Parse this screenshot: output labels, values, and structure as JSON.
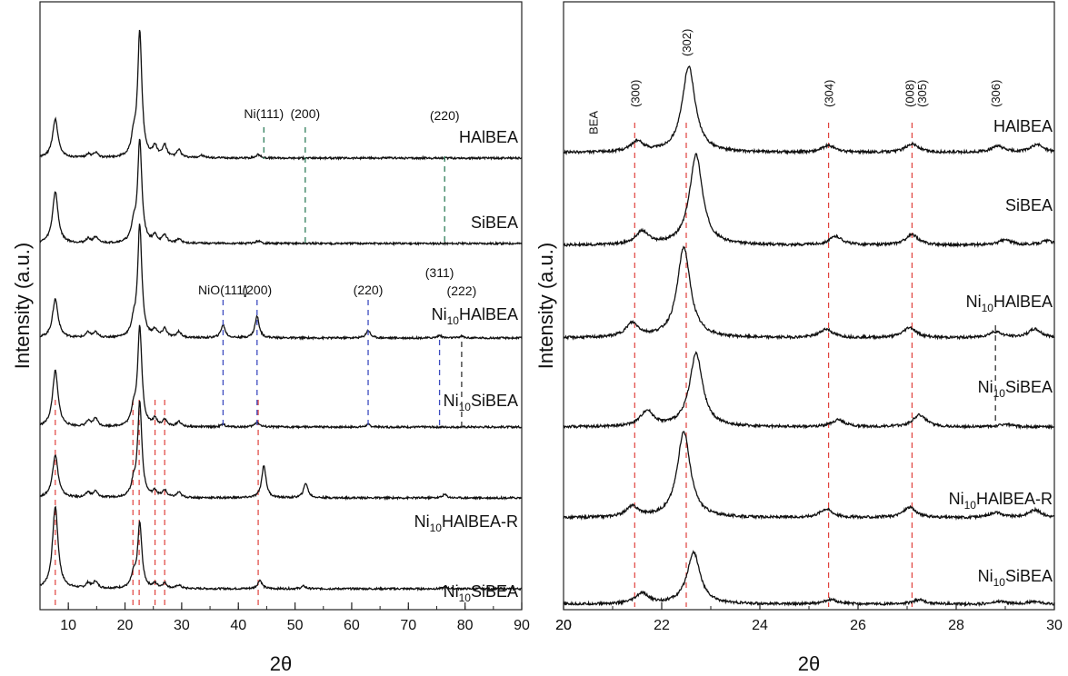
{
  "chart_data": [
    {
      "type": "line",
      "panel": "left",
      "xlabel": "2θ",
      "ylabel": "Intensity (a.u.)",
      "xlim": [
        5,
        90
      ],
      "xticks": [
        10,
        20,
        30,
        40,
        50,
        60,
        70,
        80,
        90
      ],
      "stack_bottom_to_top": [
        "HAlBEA",
        "SiBEA",
        "Ni10HAlBEA",
        "Ni10SiBEA",
        "Ni10HAlBEA-R",
        "Ni10SiBEA"
      ],
      "series": [
        {
          "label": "Ni10SiBEA",
          "peaks": [
            [
              7.7,
              95
            ],
            [
              13.5,
              6
            ],
            [
              14.8,
              8
            ],
            [
              21.5,
              14
            ],
            [
              22.6,
              75
            ],
            [
              25.3,
              5
            ],
            [
              27.0,
              6
            ],
            [
              29.5,
              4
            ],
            [
              43.8,
              10
            ],
            [
              51.5,
              3
            ],
            [
              76.5,
              2
            ]
          ]
        },
        {
          "label": "Ni10HAlBEA-R",
          "peaks": [
            [
              7.7,
              50
            ],
            [
              13.5,
              6
            ],
            [
              14.8,
              7
            ],
            [
              21.5,
              14
            ],
            [
              22.6,
              110
            ],
            [
              25.3,
              7
            ],
            [
              27.0,
              8
            ],
            [
              29.5,
              6
            ],
            [
              44.5,
              38
            ],
            [
              51.9,
              17
            ],
            [
              76.4,
              4
            ]
          ]
        },
        {
          "label": "Ni10SiBEA",
          "peaks": [
            [
              7.7,
              65
            ],
            [
              13.5,
              6
            ],
            [
              14.8,
              10
            ],
            [
              21.5,
              18
            ],
            [
              22.6,
              115
            ],
            [
              25.3,
              8
            ],
            [
              27.0,
              8
            ],
            [
              29.5,
              6
            ],
            [
              37.3,
              3
            ],
            [
              43.3,
              6
            ],
            [
              62.9,
              3
            ]
          ]
        },
        {
          "label": "Ni10HAlBEA",
          "peaks": [
            [
              7.7,
              45
            ],
            [
              13.5,
              6
            ],
            [
              14.8,
              6
            ],
            [
              21.5,
              14
            ],
            [
              22.6,
              130
            ],
            [
              25.3,
              8
            ],
            [
              27.0,
              10
            ],
            [
              29.5,
              7
            ],
            [
              37.3,
              15
            ],
            [
              43.3,
              25
            ],
            [
              62.9,
              9
            ],
            [
              75.5,
              3
            ],
            [
              79.4,
              2
            ]
          ]
        },
        {
          "label": "SiBEA",
          "peaks": [
            [
              7.7,
              60
            ],
            [
              13.5,
              5
            ],
            [
              14.8,
              7
            ],
            [
              21.5,
              18
            ],
            [
              22.6,
              118
            ],
            [
              25.3,
              8
            ],
            [
              27.0,
              9
            ],
            [
              29.5,
              5
            ],
            [
              43.5,
              3
            ]
          ]
        },
        {
          "label": "HAlBEA",
          "peaks": [
            [
              7.7,
              45
            ],
            [
              13.5,
              4
            ],
            [
              14.8,
              6
            ],
            [
              21.5,
              20
            ],
            [
              22.6,
              145
            ],
            [
              25.3,
              12
            ],
            [
              27.0,
              14
            ],
            [
              29.5,
              9
            ],
            [
              33.5,
              3
            ],
            [
              43.5,
              4
            ]
          ]
        }
      ],
      "annotations": [
        {
          "text": "Ni(111)",
          "x": 44.5
        },
        {
          "text": "(200)",
          "x": 51.8
        },
        {
          "text": "(220)",
          "x": 76.4
        },
        {
          "text": "NiO(111)",
          "x": 37.3
        },
        {
          "text": "(200)",
          "x": 43.3
        },
        {
          "text": "(220)",
          "x": 62.9
        },
        {
          "text": "(311)",
          "x": 75.5
        },
        {
          "text": "(222)",
          "x": 79.4
        }
      ],
      "bea_reference_lines": [
        7.7,
        21.4,
        22.5,
        25.3,
        27.0,
        43.5
      ]
    },
    {
      "type": "line",
      "panel": "right",
      "xlabel": "2θ",
      "ylabel": "Intensity (a.u.)",
      "xlim": [
        20,
        30
      ],
      "xticks": [
        20,
        22,
        24,
        26,
        28,
        30
      ],
      "stack_bottom_to_top": [
        "HAlBEA",
        "SiBEA",
        "Ni10HAlBEA",
        "Ni10SiBEA",
        "Ni10HAlBEA-R",
        "Ni10SiBEA"
      ],
      "series": [
        {
          "label": "Ni10SiBEA",
          "peaks": [
            [
              21.6,
              12
            ],
            [
              22.65,
              60
            ],
            [
              25.45,
              5
            ],
            [
              27.25,
              5
            ],
            [
              28.9,
              3
            ],
            [
              29.6,
              3
            ]
          ]
        },
        {
          "label": "Ni10HAlBEA-R",
          "peaks": [
            [
              21.4,
              12
            ],
            [
              22.45,
              100
            ],
            [
              25.35,
              10
            ],
            [
              27.05,
              12
            ],
            [
              28.8,
              6
            ],
            [
              29.6,
              9
            ]
          ]
        },
        {
          "label": "Ni10SiBEA",
          "peaks": [
            [
              21.7,
              18
            ],
            [
              22.7,
              85
            ],
            [
              25.6,
              8
            ],
            [
              27.25,
              14
            ],
            [
              29.0,
              3
            ]
          ]
        },
        {
          "label": "Ni10HAlBEA",
          "peaks": [
            [
              21.4,
              16
            ],
            [
              22.45,
              105
            ],
            [
              25.35,
              10
            ],
            [
              27.05,
              12
            ],
            [
              28.8,
              7
            ],
            [
              29.6,
              10
            ]
          ]
        },
        {
          "label": "SiBEA",
          "peaks": [
            [
              21.6,
              15
            ],
            [
              22.7,
              105
            ],
            [
              25.55,
              10
            ],
            [
              27.1,
              12
            ],
            [
              29.0,
              6
            ],
            [
              29.85,
              5
            ]
          ]
        },
        {
          "label": "HAlBEA",
          "peaks": [
            [
              21.5,
              12
            ],
            [
              22.55,
              100
            ],
            [
              25.4,
              8
            ],
            [
              27.1,
              10
            ],
            [
              28.85,
              7
            ],
            [
              29.65,
              9
            ]
          ]
        }
      ],
      "annotations": [
        {
          "text": "BEA",
          "x": 20.6
        },
        {
          "text": "(300)",
          "x": 21.45
        },
        {
          "text": "(302)",
          "x": 22.5
        },
        {
          "text": "(304)",
          "x": 25.4
        },
        {
          "text": "(008)",
          "x": 27.05
        },
        {
          "text": "(305)",
          "x": 27.3
        },
        {
          "text": "(306)",
          "x": 28.8
        }
      ],
      "bea_reference_lines": [
        21.45,
        22.5,
        25.4,
        27.1
      ]
    }
  ]
}
